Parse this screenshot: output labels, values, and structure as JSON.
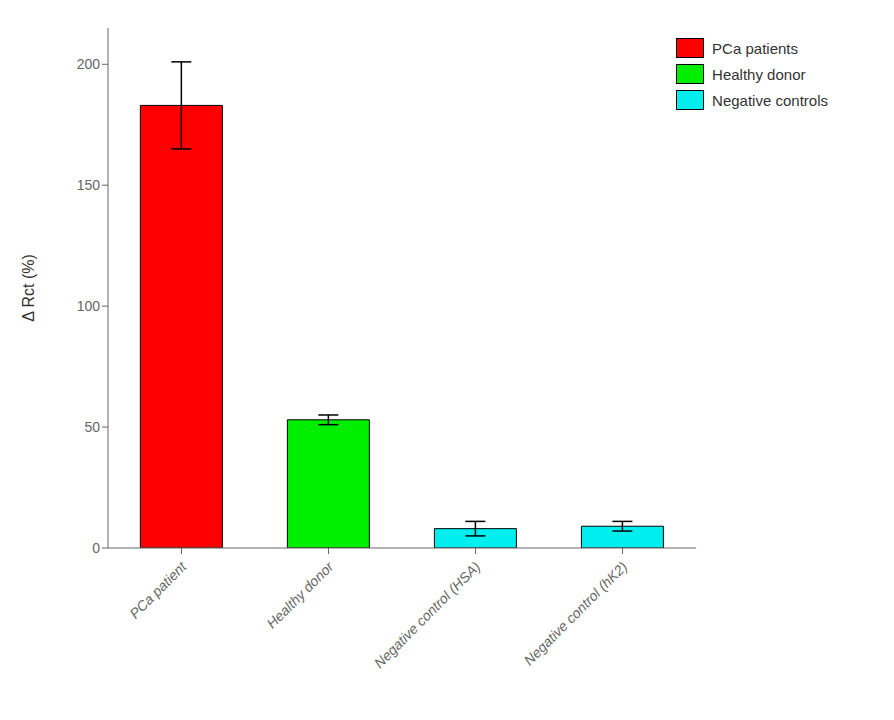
{
  "chart_data": {
    "type": "bar",
    "categories": [
      "PCa patient",
      "Healthy donor",
      "Negative control (HSA)",
      "Negative control (hK2)"
    ],
    "values": [
      183,
      53,
      8,
      9
    ],
    "errors": [
      18,
      2,
      3,
      2
    ],
    "colors": [
      "#ff0000",
      "#00ee00",
      "#00eeee",
      "#00eeee"
    ],
    "ylabel": "Δ Rct (%)",
    "ylim": [
      0,
      215
    ],
    "yticks": [
      0,
      50,
      100,
      150,
      200
    ],
    "grid": false,
    "legend": "upper right",
    "legend_entries": [
      {
        "name": "PCa patients",
        "color": "#ff0000"
      },
      {
        "name": "Healthy donor",
        "color": "#00ee00"
      },
      {
        "name": "Negative controls",
        "color": "#00eeee"
      }
    ]
  }
}
